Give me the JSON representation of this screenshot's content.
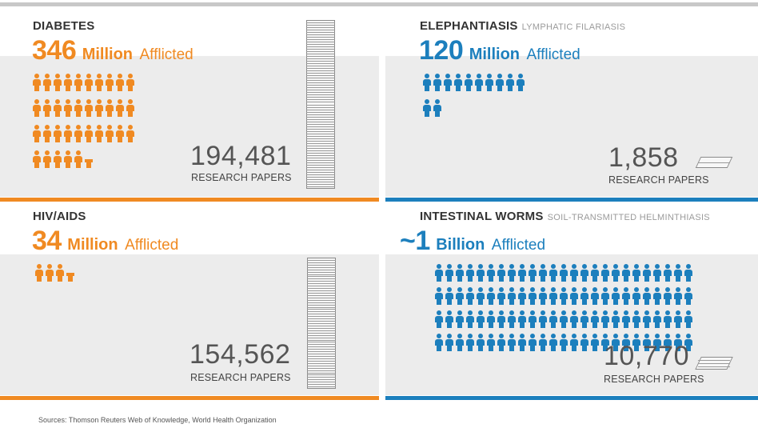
{
  "colors": {
    "orange": "#f08a22",
    "blue": "#1c7fbd",
    "band": "#ececec",
    "top_rule": "#c8c8c8"
  },
  "source": "Sources: Thomson Reuters Web of Knowledge, World Health Organization",
  "chart_data": [
    {
      "type": "bar",
      "title": "DIABETES",
      "subtitle": "",
      "afflicted_number": "346",
      "afflicted_unit": "Million",
      "afflicted_label": "Afflicted",
      "afflicted_millions": 346,
      "research_papers": 194481,
      "research_papers_display": "194,481",
      "research_papers_label": "RESEARCH PAPERS",
      "color": "orange",
      "icon": "person-icon",
      "person_icons": 35.5
    },
    {
      "type": "bar",
      "title": "ELEPHANTIASIS",
      "subtitle": "LYMPHATIC FILARIASIS",
      "afflicted_number": "120",
      "afflicted_unit": "Million",
      "afflicted_label": "Afflicted",
      "afflicted_millions": 120,
      "research_papers": 1858,
      "research_papers_display": "1,858",
      "research_papers_label": "RESEARCH PAPERS",
      "color": "blue",
      "icon": "person-icon",
      "person_icons": 12
    },
    {
      "type": "bar",
      "title": "HIV/AIDS",
      "subtitle": "",
      "afflicted_number": "34",
      "afflicted_unit": "Million",
      "afflicted_label": "Afflicted",
      "afflicted_millions": 34,
      "research_papers": 154562,
      "research_papers_display": "154,562",
      "research_papers_label": "RESEARCH PAPERS",
      "color": "orange",
      "icon": "person-icon",
      "person_icons": 3.5
    },
    {
      "type": "bar",
      "title": "INTESTINAL WORMS",
      "subtitle": "SOIL-TRANSMITTED HELMINTHIASIS",
      "afflicted_number": "~1",
      "afflicted_unit": "Billion",
      "afflicted_label": "Afflicted",
      "afflicted_millions": 1000,
      "research_papers": 10770,
      "research_papers_display": "10,770",
      "research_papers_label": "RESEARCH PAPERS",
      "color": "blue",
      "icon": "person-icon",
      "person_icons": 100
    }
  ]
}
